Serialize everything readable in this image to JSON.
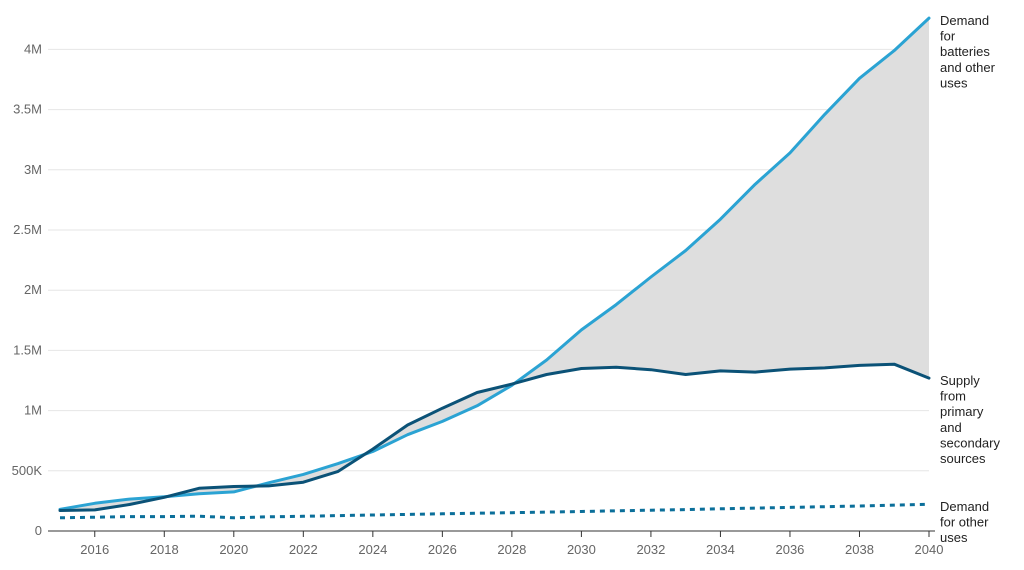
{
  "chart_data": {
    "type": "line",
    "title": "",
    "xlabel": "",
    "ylabel": "",
    "xlim": [
      2015,
      2040
    ],
    "ylim": [
      0,
      4200000
    ],
    "x_ticks": [
      2016,
      2018,
      2020,
      2022,
      2024,
      2026,
      2028,
      2030,
      2032,
      2034,
      2036,
      2038,
      2040
    ],
    "y_ticks": [
      0,
      500000,
      1000000,
      1500000,
      2000000,
      2500000,
      3000000,
      3500000,
      4000000
    ],
    "y_tick_labels": [
      "0",
      "500K",
      "1M",
      "1.5M",
      "2M",
      "2.5M",
      "3M",
      "3.5M",
      "4M"
    ],
    "grid": "horizontal",
    "shaded_gap": {
      "between": [
        "Demand for batteries and other uses",
        "Supply from primary and secondary sources"
      ],
      "color": "#dedede"
    },
    "x": [
      2015,
      2016,
      2017,
      2018,
      2019,
      2020,
      2021,
      2022,
      2023,
      2024,
      2025,
      2026,
      2027,
      2028,
      2029,
      2030,
      2031,
      2032,
      2033,
      2034,
      2035,
      2036,
      2037,
      2038,
      2039,
      2040
    ],
    "series": [
      {
        "name": "Demand for batteries and other uses",
        "label_lines": [
          "Demand",
          "for",
          "batteries",
          "and other",
          "uses"
        ],
        "color": "#2ba3d3",
        "style": "solid",
        "values": [
          180000,
          230000,
          265000,
          285000,
          310000,
          325000,
          400000,
          470000,
          560000,
          660000,
          800000,
          910000,
          1040000,
          1210000,
          1420000,
          1670000,
          1880000,
          2110000,
          2330000,
          2590000,
          2880000,
          3140000,
          3460000,
          3760000,
          3990000,
          4260000
        ]
      },
      {
        "name": "Supply from primary and secondary sources",
        "label_lines": [
          "Supply",
          "from",
          "primary",
          "and",
          "secondary",
          "sources"
        ],
        "color": "#0b5277",
        "style": "solid",
        "values": [
          170000,
          175000,
          220000,
          280000,
          355000,
          370000,
          375000,
          405000,
          495000,
          680000,
          880000,
          1020000,
          1150000,
          1220000,
          1300000,
          1350000,
          1360000,
          1340000,
          1300000,
          1330000,
          1320000,
          1345000,
          1355000,
          1375000,
          1385000,
          1270000
        ]
      },
      {
        "name": "Demand for other uses",
        "label_lines": [
          "Demand",
          "for other",
          "uses"
        ],
        "color": "#0b6f9a",
        "style": "dashed",
        "values": [
          110000,
          115000,
          120000,
          120000,
          123000,
          110000,
          118000,
          122000,
          128000,
          133000,
          138000,
          143000,
          148000,
          152000,
          157000,
          162000,
          168000,
          173000,
          178000,
          184000,
          190000,
          196000,
          202000,
          208000,
          215000,
          222000
        ]
      }
    ]
  }
}
